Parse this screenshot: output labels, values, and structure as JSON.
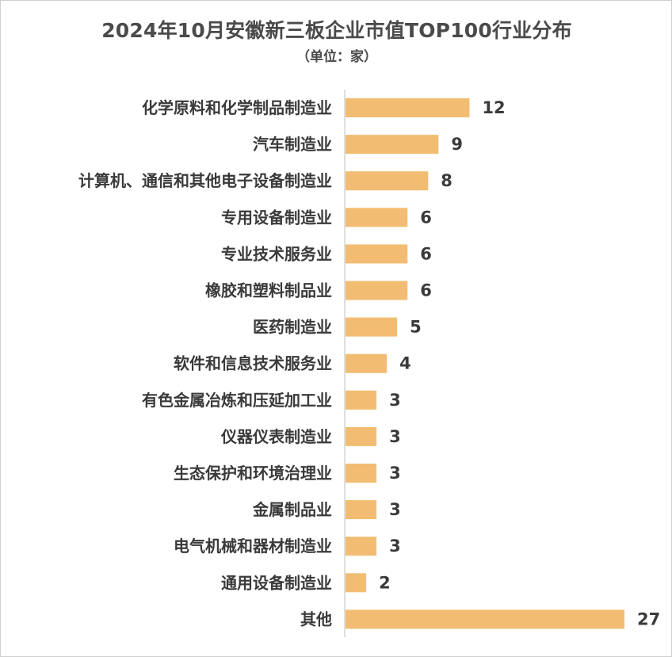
{
  "chart_data": {
    "type": "bar",
    "orientation": "horizontal",
    "title": "2024年10月安徽新三板企业市值TOP100行业分布",
    "subtitle": "（单位：家）",
    "categories": [
      "化学原料和化学制品制造业",
      "汽车制造业",
      "计算机、通信和其他电子设备制造业",
      "专用设备制造业",
      "专业技术服务业",
      "橡胶和塑料制品业",
      "医药制造业",
      "软件和信息技术服务业",
      "有色金属冶炼和压延加工业",
      "仪器仪表制造业",
      "生态保护和环境治理业",
      "金属制品业",
      "电气机械和器材制造业",
      "通用设备制造业",
      "其他"
    ],
    "values": [
      12,
      9,
      8,
      6,
      6,
      6,
      5,
      4,
      3,
      3,
      3,
      3,
      3,
      2,
      27
    ],
    "xlim": [
      0,
      27
    ],
    "bar_color": "#F2BD72",
    "grid": false,
    "legend": "none"
  }
}
